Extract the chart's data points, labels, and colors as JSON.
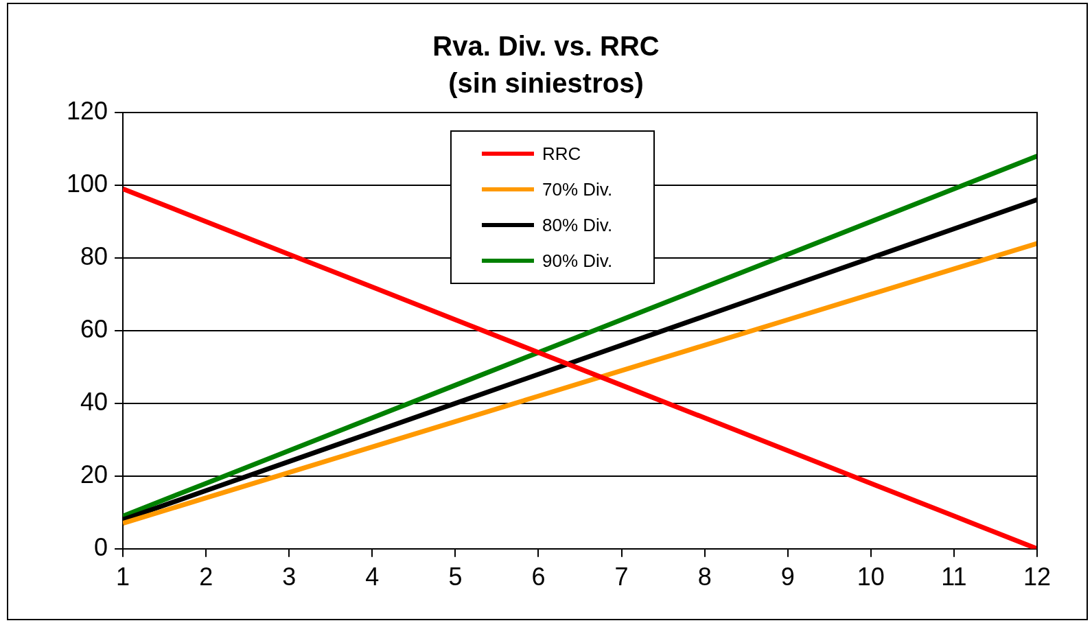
{
  "chart_data": {
    "type": "line",
    "title": "Rva. Div. vs. RRC\n(sin siniestros)",
    "x": [
      1,
      2,
      3,
      4,
      5,
      6,
      7,
      8,
      9,
      10,
      11,
      12
    ],
    "xlim": [
      1,
      12
    ],
    "xticks": [
      1,
      2,
      3,
      4,
      5,
      6,
      7,
      8,
      9,
      10,
      11,
      12
    ],
    "ylim": [
      0,
      120
    ],
    "yticks": [
      0,
      20,
      40,
      60,
      80,
      100,
      120
    ],
    "grid": "y",
    "legend": "top",
    "marker": "none",
    "line_style": "solid",
    "series": [
      {
        "name": "RRC",
        "color": "#ff0000",
        "values": [
          99,
          90,
          81,
          72,
          63,
          54,
          45,
          36,
          27,
          18,
          9,
          0
        ]
      },
      {
        "name": "70% Div.",
        "color": "#ff9900",
        "values": [
          7,
          14,
          21,
          28,
          35,
          42,
          49,
          56,
          63,
          70,
          77,
          84
        ]
      },
      {
        "name": "80% Div.",
        "color": "#000000",
        "values": [
          8,
          16,
          24,
          32,
          40,
          48,
          56,
          64,
          72,
          80,
          88,
          96
        ]
      },
      {
        "name": "90% Div.",
        "color": "#008000",
        "values": [
          9,
          18,
          27,
          36,
          45,
          54,
          63,
          72,
          81,
          90,
          99,
          108
        ]
      }
    ]
  }
}
